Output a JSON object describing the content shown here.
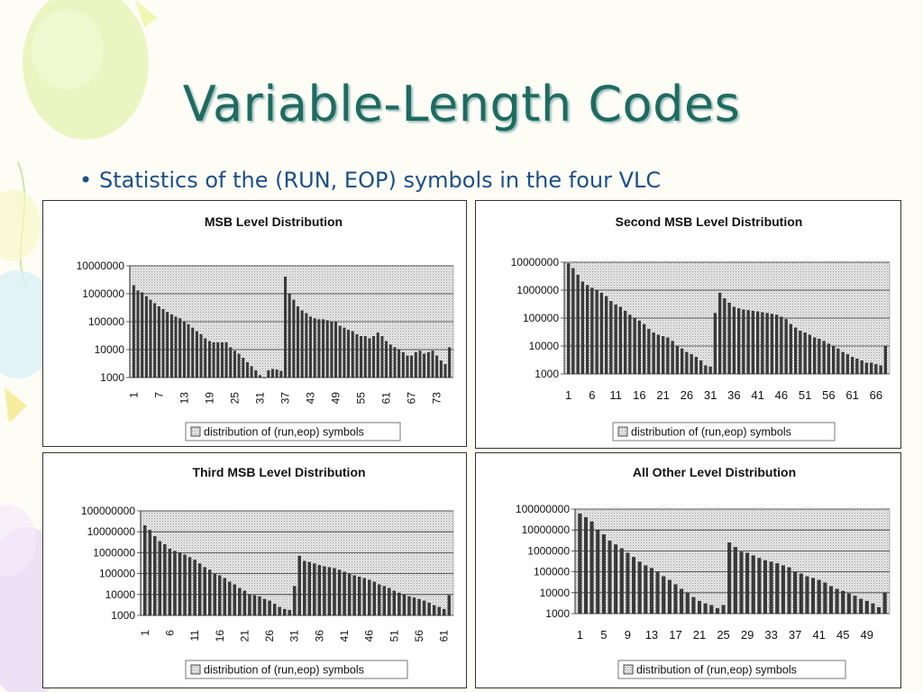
{
  "slide": {
    "title": "Variable-Length Codes",
    "bullet": "Statistics of the (RUN, EOP) symbols in the four VLC"
  },
  "chart_data": [
    {
      "type": "bar",
      "title": "MSB Level Distribution",
      "legend": "distribution of (run,eop) symbols",
      "legend_position": "bottom",
      "yscale": "log",
      "ylim": [
        1000,
        10000000
      ],
      "ytick_labels": [
        "10000000",
        "1000000",
        "100000",
        "10000",
        "1000"
      ],
      "tick_labels": [
        "1",
        "7",
        "13",
        "19",
        "25",
        "31",
        "37",
        "43",
        "49",
        "55",
        "61",
        "67",
        "73"
      ],
      "x": [
        1,
        2,
        3,
        4,
        5,
        6,
        7,
        8,
        9,
        10,
        11,
        12,
        13,
        14,
        15,
        16,
        17,
        18,
        19,
        20,
        21,
        22,
        23,
        24,
        25,
        26,
        27,
        28,
        29,
        30,
        31,
        32,
        33,
        34,
        35,
        36,
        37,
        38,
        39,
        40,
        41,
        42,
        43,
        44,
        45,
        46,
        47,
        48,
        49,
        50,
        51,
        52,
        53,
        54,
        55,
        56,
        57,
        58,
        59,
        60,
        61,
        62,
        63,
        64,
        65,
        66,
        67,
        68,
        69,
        70,
        71,
        72,
        73,
        74,
        75,
        76
      ],
      "values": [
        2000000,
        1300000,
        1100000,
        800000,
        600000,
        450000,
        350000,
        280000,
        220000,
        180000,
        150000,
        130000,
        100000,
        80000,
        60000,
        45000,
        35000,
        25000,
        20000,
        18000,
        18000,
        18000,
        18000,
        12000,
        9000,
        7000,
        5000,
        3500,
        2500,
        1800,
        1200,
        1000,
        1800,
        2000,
        1900,
        1700,
        4000000,
        1000000,
        600000,
        350000,
        250000,
        200000,
        150000,
        130000,
        120000,
        120000,
        110000,
        100000,
        100000,
        70000,
        60000,
        50000,
        45000,
        35000,
        30000,
        30000,
        25000,
        30000,
        40000,
        30000,
        20000,
        15000,
        12000,
        10000,
        8000,
        6000,
        6000,
        8000,
        9000,
        7000,
        8000,
        9000,
        6000,
        4000,
        3000,
        12000
      ]
    },
    {
      "type": "bar",
      "title": "Second MSB Level Distribution",
      "legend": "distribution of (run,eop) symbols",
      "legend_position": "bottom",
      "yscale": "log",
      "ylim": [
        1000,
        10000000
      ],
      "ytick_labels": [
        "10000000",
        "1000000",
        "100000",
        "10000",
        "1000"
      ],
      "tick_labels": [
        "1",
        "6",
        "11",
        "16",
        "21",
        "26",
        "31",
        "36",
        "41",
        "46",
        "51",
        "56",
        "61",
        "66"
      ],
      "x": [
        1,
        2,
        3,
        4,
        5,
        6,
        7,
        8,
        9,
        10,
        11,
        12,
        13,
        14,
        15,
        16,
        17,
        18,
        19,
        20,
        21,
        22,
        23,
        24,
        25,
        26,
        27,
        28,
        29,
        30,
        31,
        32,
        33,
        34,
        35,
        36,
        37,
        38,
        39,
        40,
        41,
        42,
        43,
        44,
        45,
        46,
        47,
        48,
        49,
        50,
        51,
        52,
        53,
        54,
        55,
        56,
        57,
        58,
        59,
        60,
        61,
        62,
        63,
        64,
        65,
        66,
        67,
        68
      ],
      "values": [
        9000000,
        6000000,
        3500000,
        2000000,
        1500000,
        1200000,
        1000000,
        800000,
        600000,
        400000,
        300000,
        250000,
        180000,
        130000,
        100000,
        80000,
        60000,
        40000,
        30000,
        25000,
        22000,
        20000,
        15000,
        10000,
        8000,
        6000,
        5000,
        4000,
        3000,
        2000,
        1800,
        150000,
        800000,
        500000,
        350000,
        250000,
        220000,
        200000,
        190000,
        180000,
        170000,
        160000,
        150000,
        140000,
        130000,
        110000,
        90000,
        60000,
        45000,
        35000,
        30000,
        25000,
        20000,
        18000,
        15000,
        12000,
        10000,
        8000,
        6000,
        5000,
        4000,
        3500,
        3000,
        2500,
        2500,
        2200,
        2000,
        10000
      ]
    },
    {
      "type": "bar",
      "title": "Third MSB Level Distribution",
      "legend": "distribution of (run,eop) symbols",
      "legend_position": "bottom",
      "yscale": "log",
      "ylim": [
        1000,
        100000000
      ],
      "ytick_labels": [
        "100000000",
        "10000000",
        "1000000",
        "100000",
        "10000",
        "1000"
      ],
      "tick_labels": [
        "1",
        "6",
        "11",
        "16",
        "21",
        "26",
        "31",
        "36",
        "41",
        "46",
        "51",
        "56",
        "61"
      ],
      "x": [
        1,
        2,
        3,
        4,
        5,
        6,
        7,
        8,
        9,
        10,
        11,
        12,
        13,
        14,
        15,
        16,
        17,
        18,
        19,
        20,
        21,
        22,
        23,
        24,
        25,
        26,
        27,
        28,
        29,
        30,
        31,
        32,
        33,
        34,
        35,
        36,
        37,
        38,
        39,
        40,
        41,
        42,
        43,
        44,
        45,
        46,
        47,
        48,
        49,
        50,
        51,
        52,
        53,
        54,
        55,
        56,
        57,
        58,
        59,
        60,
        61,
        62
      ],
      "values": [
        20000000,
        12000000,
        6000000,
        3500000,
        2500000,
        1500000,
        1200000,
        1000000,
        800000,
        600000,
        450000,
        300000,
        200000,
        150000,
        100000,
        80000,
        60000,
        40000,
        30000,
        20000,
        15000,
        10000,
        9000,
        8000,
        6000,
        5000,
        3500,
        2500,
        2000,
        1800,
        25000,
        700000,
        400000,
        350000,
        300000,
        250000,
        220000,
        200000,
        180000,
        150000,
        120000,
        100000,
        80000,
        70000,
        60000,
        50000,
        40000,
        30000,
        25000,
        20000,
        15000,
        12000,
        10000,
        8000,
        7000,
        6000,
        5000,
        4000,
        3000,
        2500,
        2000,
        9000
      ]
    },
    {
      "type": "bar",
      "title": "All Other Level Distribution",
      "legend": "distribution of (run,eop) symbols",
      "legend_position": "bottom",
      "yscale": "log",
      "ylim": [
        1000,
        100000000
      ],
      "ytick_labels": [
        "100000000",
        "10000000",
        "1000000",
        "100000",
        "10000",
        "1000"
      ],
      "tick_labels": [
        "1",
        "5",
        "9",
        "13",
        "17",
        "21",
        "25",
        "29",
        "33",
        "37",
        "41",
        "45",
        "49"
      ],
      "x": [
        1,
        2,
        3,
        4,
        5,
        6,
        7,
        8,
        9,
        10,
        11,
        12,
        13,
        14,
        15,
        16,
        17,
        18,
        19,
        20,
        21,
        22,
        23,
        24,
        25,
        26,
        27,
        28,
        29,
        30,
        31,
        32,
        33,
        34,
        35,
        36,
        37,
        38,
        39,
        40,
        41,
        42,
        43,
        44,
        45,
        46,
        47,
        48,
        49,
        50,
        51,
        52
      ],
      "values": [
        60000000,
        40000000,
        25000000,
        10000000,
        6000000,
        3000000,
        2000000,
        1300000,
        800000,
        500000,
        300000,
        200000,
        150000,
        100000,
        60000,
        40000,
        25000,
        15000,
        10000,
        6000,
        4000,
        3000,
        2500,
        1800,
        2500,
        2500000,
        1500000,
        900000,
        800000,
        600000,
        450000,
        350000,
        300000,
        250000,
        200000,
        160000,
        100000,
        80000,
        60000,
        50000,
        40000,
        30000,
        20000,
        15000,
        12000,
        9000,
        7000,
        5000,
        4000,
        3000,
        2000,
        10000
      ]
    }
  ]
}
